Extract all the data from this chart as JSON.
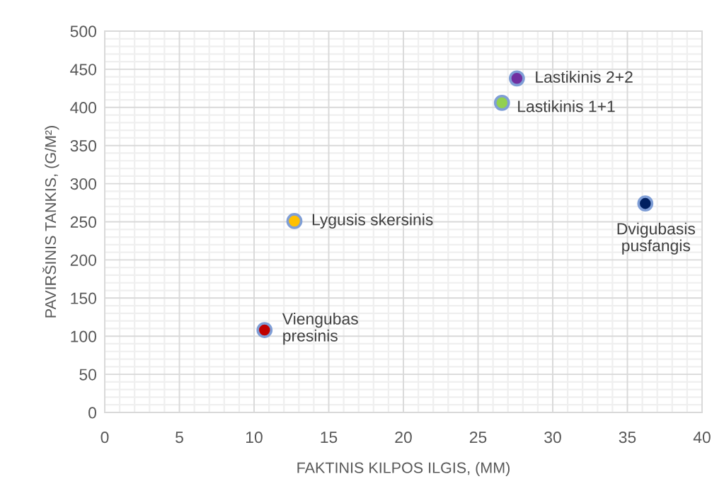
{
  "chart_data": {
    "type": "scatter",
    "xlabel": "FAKTINIS KILPOS ILGIS, (MM)",
    "ylabel": "PAVIRŠINIS TANKIS, (G/M²)",
    "xlim": [
      0,
      40
    ],
    "ylim": [
      0,
      500
    ],
    "xticks": [
      0,
      5,
      10,
      15,
      20,
      25,
      30,
      35,
      40
    ],
    "yticks": [
      0,
      50,
      100,
      150,
      200,
      250,
      300,
      350,
      400,
      450,
      500
    ],
    "grid": true,
    "marker": "circle",
    "series": [
      {
        "name": "Viengubas presinis",
        "color": "#c00000",
        "x": [
          10.7
        ],
        "values": [
          108
        ]
      },
      {
        "name": "Lygusis skersinis",
        "color": "#ffc000",
        "x": [
          12.7
        ],
        "values": [
          251
        ]
      },
      {
        "name": "Lastikinis 1+1",
        "color": "#92d050",
        "x": [
          26.6
        ],
        "values": [
          406
        ]
      },
      {
        "name": "Lastikinis 2+2",
        "color": "#7030a0",
        "x": [
          27.6
        ],
        "values": [
          438
        ]
      },
      {
        "name": "Dvigubasis pusfangis",
        "color": "#002060",
        "x": [
          36.2
        ],
        "values": [
          274
        ]
      }
    ]
  }
}
